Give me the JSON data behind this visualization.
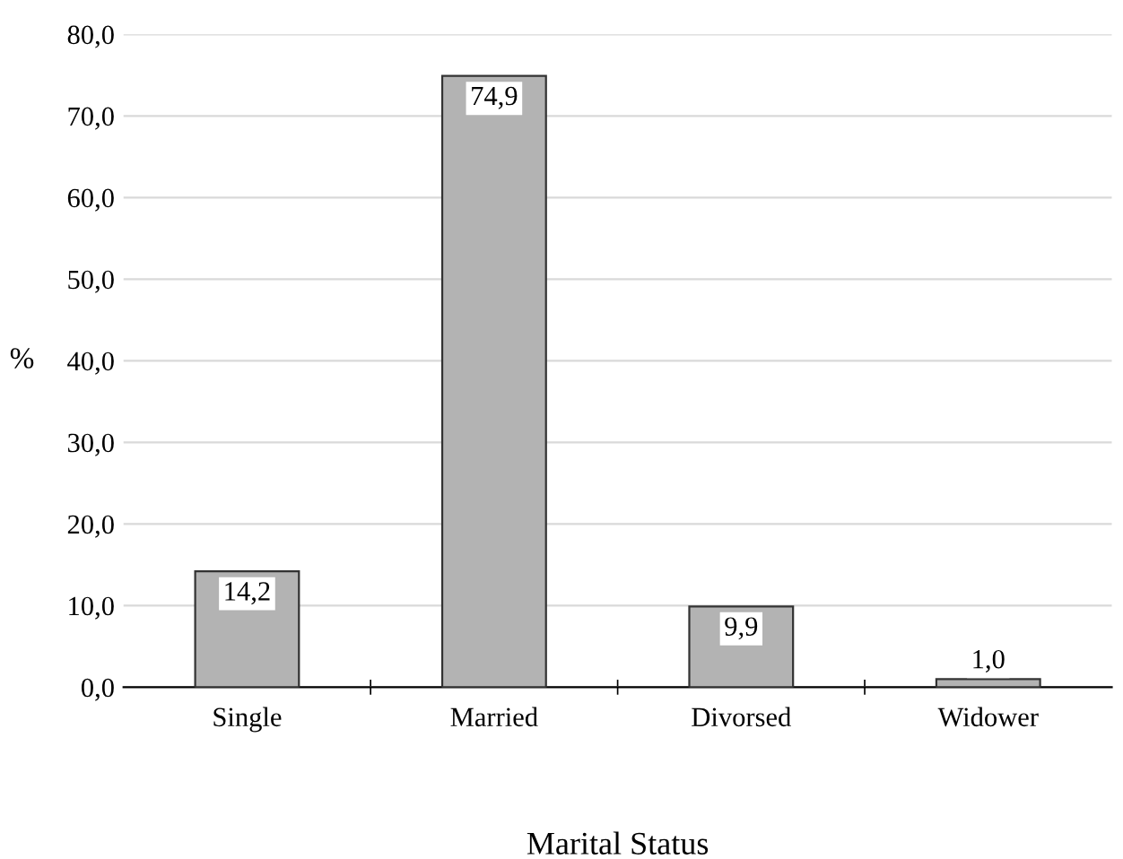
{
  "chart_data": {
    "type": "bar",
    "xlabel": "Marital Status",
    "ylabel": "%",
    "categories": [
      "Single",
      "Married",
      "Divorsed",
      "Widower"
    ],
    "values": [
      14.2,
      74.9,
      9.9,
      1.0
    ],
    "value_labels": [
      "14,2",
      "74,9",
      "9,9",
      "1,0"
    ],
    "color": "#b3b3b3",
    "ylim": [
      0,
      80
    ],
    "yticks": [
      {
        "value": 0,
        "label": "0,0"
      },
      {
        "value": 10,
        "label": "10,0"
      },
      {
        "value": 20,
        "label": "20,0"
      },
      {
        "value": 30,
        "label": "30,0"
      },
      {
        "value": 40,
        "label": "40,0"
      },
      {
        "value": 50,
        "label": "50,0"
      },
      {
        "value": 60,
        "label": "60,0"
      },
      {
        "value": 70,
        "label": "70,0"
      },
      {
        "value": 80,
        "label": "80,0"
      }
    ],
    "grid": "y"
  }
}
